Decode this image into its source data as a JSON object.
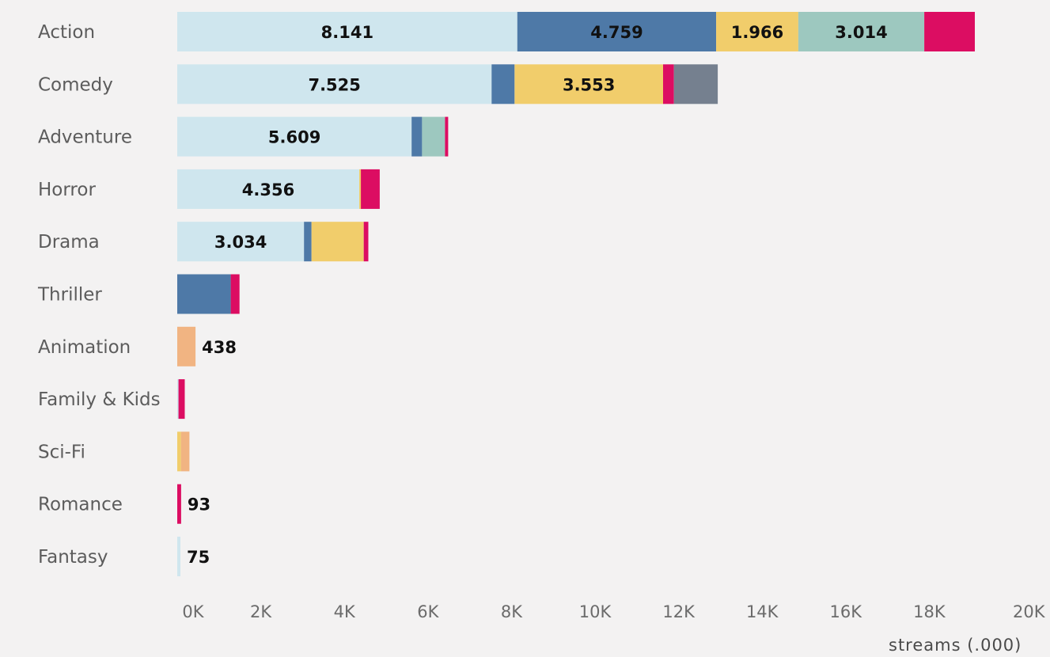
{
  "chart_data": {
    "type": "bar",
    "orientation": "horizontal",
    "stacked": true,
    "title": "",
    "xlabel": "streams (.000)",
    "ylabel": "",
    "xlim": [
      0,
      20000
    ],
    "x_ticks": [
      0,
      2000,
      4000,
      6000,
      8000,
      10000,
      12000,
      14000,
      16000,
      18000,
      20000
    ],
    "x_tick_labels": [
      "0K",
      "2K",
      "4K",
      "6K",
      "8K",
      "10K",
      "12K",
      "14K",
      "16K",
      "18K",
      "20K"
    ],
    "grid": false,
    "legend": "none",
    "categories": [
      "Action",
      "Comedy",
      "Adventure",
      "Horror",
      "Drama",
      "Thriller",
      "Animation",
      "Family & Kids",
      "Sci-Fi",
      "Romance",
      "Fantasy"
    ],
    "series": [
      {
        "color": "#cfe6ee",
        "values": [
          8141,
          7525,
          5609,
          4356,
          3034,
          0,
          0,
          30,
          0,
          0,
          75
        ],
        "labels": [
          "8.141",
          "7.525",
          "5.609",
          "4.356",
          "3.034",
          "",
          "",
          "",
          "",
          "",
          "75"
        ]
      },
      {
        "color": "#4e79a7",
        "values": [
          4759,
          550,
          250,
          0,
          180,
          1280,
          0,
          0,
          0,
          0,
          0
        ],
        "labels": [
          "4.759",
          "",
          "",
          "",
          "",
          "",
          "",
          "",
          "",
          "",
          ""
        ]
      },
      {
        "color": "#f1cd6b",
        "values": [
          1966,
          3553,
          0,
          40,
          1250,
          0,
          0,
          0,
          90,
          0,
          0
        ],
        "labels": [
          "1.966",
          "3.553",
          "",
          "",
          "",
          "",
          "",
          "",
          "",
          "",
          ""
        ]
      },
      {
        "color": "#9dc8bf",
        "values": [
          3014,
          0,
          550,
          0,
          0,
          0,
          0,
          0,
          0,
          0,
          0
        ],
        "labels": [
          "3.014",
          "",
          "",
          "",
          "",
          "",
          "",
          "",
          "",
          "",
          ""
        ]
      },
      {
        "color": "#f1b482",
        "values": [
          0,
          0,
          0,
          0,
          0,
          0,
          438,
          0,
          200,
          0,
          0
        ],
        "labels": [
          "",
          "",
          "",
          "",
          "",
          "",
          "438",
          "",
          "",
          "",
          ""
        ]
      },
      {
        "color": "#dc0d62",
        "values": [
          1210,
          260,
          70,
          450,
          110,
          210,
          0,
          150,
          0,
          93,
          0
        ],
        "labels": [
          "",
          "",
          "",
          "",
          "",
          "",
          "",
          "",
          "",
          "93",
          ""
        ]
      },
      {
        "color": "#75808f",
        "values": [
          0,
          1050,
          0,
          0,
          0,
          0,
          0,
          0,
          0,
          0,
          0
        ],
        "labels": [
          "",
          "",
          "",
          "",
          "",
          "",
          "",
          "",
          "",
          "",
          ""
        ]
      }
    ]
  }
}
